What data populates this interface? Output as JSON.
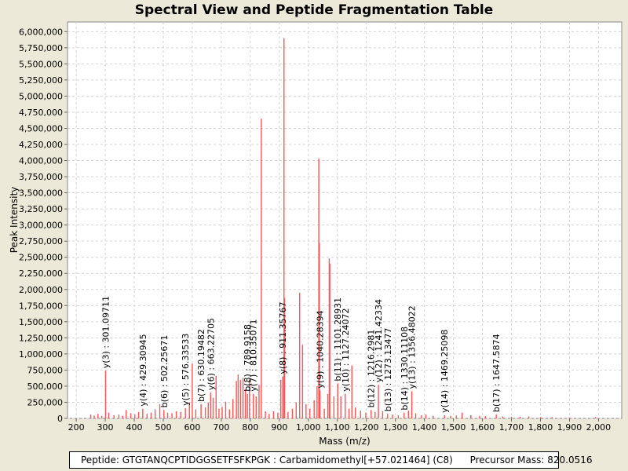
{
  "chart_data": {
    "type": "bar",
    "title": "Spectral View and Peptide Fragmentation Table",
    "xlabel": "Mass (m/z)",
    "ylabel": "Peak Intensity",
    "xlim": [
      170,
      2080
    ],
    "ylim": [
      0,
      6150000
    ],
    "x_ticks": [
      200,
      300,
      400,
      500,
      600,
      700,
      800,
      900,
      1000,
      1100,
      1200,
      1300,
      1400,
      1500,
      1600,
      1700,
      1800,
      1900,
      2000
    ],
    "x_tick_labels": [
      "200",
      "300",
      "400",
      "500",
      "600",
      "700",
      "800",
      "900",
      "1,000",
      "1,100",
      "1,200",
      "1,300",
      "1,400",
      "1,500",
      "1,600",
      "1,700",
      "1,800",
      "1,900",
      "2,000"
    ],
    "y_ticks": [
      0,
      250000,
      500000,
      750000,
      1000000,
      1250000,
      1500000,
      1750000,
      2000000,
      2250000,
      2500000,
      2750000,
      3000000,
      3250000,
      3500000,
      3750000,
      4000000,
      4250000,
      4500000,
      4750000,
      5000000,
      5250000,
      5500000,
      5750000,
      6000000
    ],
    "y_tick_labels": [
      "0",
      "250,000",
      "500,000",
      "750,000",
      "1,000,000",
      "1,250,000",
      "1,500,000",
      "1,750,000",
      "2,000,000",
      "2,250,000",
      "2,500,000",
      "2,750,000",
      "3,000,000",
      "3,250,000",
      "3,500,000",
      "3,750,000",
      "4,000,000",
      "4,250,000",
      "4,500,000",
      "4,750,000",
      "5,000,000",
      "5,250,000",
      "5,500,000",
      "5,750,000",
      "6,000,000"
    ],
    "grid": true,
    "peaks": [
      {
        "mz": 250,
        "i": 60000
      },
      {
        "mz": 262,
        "i": 45000
      },
      {
        "mz": 275,
        "i": 70000
      },
      {
        "mz": 288,
        "i": 40000
      },
      {
        "mz": 301.1,
        "i": 740000
      },
      {
        "mz": 312,
        "i": 90000
      },
      {
        "mz": 330,
        "i": 50000
      },
      {
        "mz": 347,
        "i": 60000
      },
      {
        "mz": 360,
        "i": 40000
      },
      {
        "mz": 372,
        "i": 130000
      },
      {
        "mz": 388,
        "i": 80000
      },
      {
        "mz": 402,
        "i": 60000
      },
      {
        "mz": 415,
        "i": 100000
      },
      {
        "mz": 429.3,
        "i": 150000
      },
      {
        "mz": 444,
        "i": 70000
      },
      {
        "mz": 458,
        "i": 90000
      },
      {
        "mz": 472,
        "i": 140000
      },
      {
        "mz": 488,
        "i": 220000
      },
      {
        "mz": 502.3,
        "i": 130000
      },
      {
        "mz": 515,
        "i": 90000
      },
      {
        "mz": 530,
        "i": 80000
      },
      {
        "mz": 545,
        "i": 110000
      },
      {
        "mz": 560,
        "i": 100000
      },
      {
        "mz": 576.3,
        "i": 160000
      },
      {
        "mz": 590,
        "i": 250000
      },
      {
        "mz": 600,
        "i": 850000
      },
      {
        "mz": 612,
        "i": 140000
      },
      {
        "mz": 630.2,
        "i": 220000
      },
      {
        "mz": 645,
        "i": 170000
      },
      {
        "mz": 655,
        "i": 250000
      },
      {
        "mz": 663.2,
        "i": 400000
      },
      {
        "mz": 672,
        "i": 320000
      },
      {
        "mz": 682,
        "i": 660000
      },
      {
        "mz": 692,
        "i": 150000
      },
      {
        "mz": 703,
        "i": 180000
      },
      {
        "mz": 715,
        "i": 260000
      },
      {
        "mz": 728,
        "i": 140000
      },
      {
        "mz": 740,
        "i": 300000
      },
      {
        "mz": 752,
        "i": 580000
      },
      {
        "mz": 758,
        "i": 680000
      },
      {
        "mz": 766,
        "i": 600000
      },
      {
        "mz": 775,
        "i": 630000
      },
      {
        "mz": 783,
        "i": 450000
      },
      {
        "mz": 789.9,
        "i": 380000
      },
      {
        "mz": 797,
        "i": 600000
      },
      {
        "mz": 810.4,
        "i": 380000
      },
      {
        "mz": 820,
        "i": 340000
      },
      {
        "mz": 830,
        "i": 520000
      },
      {
        "mz": 838,
        "i": 4650000
      },
      {
        "mz": 852,
        "i": 110000
      },
      {
        "mz": 865,
        "i": 70000
      },
      {
        "mz": 880,
        "i": 110000
      },
      {
        "mz": 895,
        "i": 90000
      },
      {
        "mz": 905,
        "i": 600000
      },
      {
        "mz": 911.4,
        "i": 650000
      },
      {
        "mz": 916,
        "i": 5900000
      },
      {
        "mz": 918,
        "i": 1870000
      },
      {
        "mz": 930,
        "i": 100000
      },
      {
        "mz": 945,
        "i": 150000
      },
      {
        "mz": 958,
        "i": 250000
      },
      {
        "mz": 970,
        "i": 1950000
      },
      {
        "mz": 980,
        "i": 1140000
      },
      {
        "mz": 992,
        "i": 220000
      },
      {
        "mz": 1005,
        "i": 150000
      },
      {
        "mz": 1020,
        "i": 280000
      },
      {
        "mz": 1030,
        "i": 500000
      },
      {
        "mz": 1036,
        "i": 4030000
      },
      {
        "mz": 1038,
        "i": 2720000
      },
      {
        "mz": 1040.3,
        "i": 430000
      },
      {
        "mz": 1055,
        "i": 150000
      },
      {
        "mz": 1067,
        "i": 380000
      },
      {
        "mz": 1072,
        "i": 2480000
      },
      {
        "mz": 1074,
        "i": 2400000
      },
      {
        "mz": 1088,
        "i": 340000
      },
      {
        "mz": 1101.3,
        "i": 540000
      },
      {
        "mz": 1112,
        "i": 340000
      },
      {
        "mz": 1127.2,
        "i": 380000
      },
      {
        "mz": 1140,
        "i": 150000
      },
      {
        "mz": 1150,
        "i": 820000
      },
      {
        "mz": 1162,
        "i": 170000
      },
      {
        "mz": 1180,
        "i": 120000
      },
      {
        "mz": 1198,
        "i": 90000
      },
      {
        "mz": 1216.3,
        "i": 130000
      },
      {
        "mz": 1230,
        "i": 100000
      },
      {
        "mz": 1241.4,
        "i": 520000
      },
      {
        "mz": 1256,
        "i": 110000
      },
      {
        "mz": 1273.1,
        "i": 70000
      },
      {
        "mz": 1290,
        "i": 60000
      },
      {
        "mz": 1310,
        "i": 50000
      },
      {
        "mz": 1330.1,
        "i": 90000
      },
      {
        "mz": 1345,
        "i": 120000
      },
      {
        "mz": 1356.5,
        "i": 420000
      },
      {
        "mz": 1370,
        "i": 80000
      },
      {
        "mz": 1390,
        "i": 50000
      },
      {
        "mz": 1405,
        "i": 60000
      },
      {
        "mz": 1430,
        "i": 40000
      },
      {
        "mz": 1469.3,
        "i": 50000
      },
      {
        "mz": 1490,
        "i": 40000
      },
      {
        "mz": 1510,
        "i": 45000
      },
      {
        "mz": 1530,
        "i": 90000
      },
      {
        "mz": 1560,
        "i": 50000
      },
      {
        "mz": 1590,
        "i": 40000
      },
      {
        "mz": 1610,
        "i": 35000
      },
      {
        "mz": 1647.6,
        "i": 60000
      },
      {
        "mz": 1670,
        "i": 30000
      },
      {
        "mz": 1700,
        "i": 25000
      },
      {
        "mz": 1730,
        "i": 25000
      },
      {
        "mz": 1760,
        "i": 30000
      },
      {
        "mz": 1800,
        "i": 20000
      },
      {
        "mz": 1840,
        "i": 20000
      },
      {
        "mz": 1900,
        "i": 15000
      },
      {
        "mz": 1990,
        "i": 20000
      }
    ],
    "annotations": [
      {
        "mz": 301.09711,
        "i": 740000,
        "label": "y(3) : 301.09711"
      },
      {
        "mz": 429.30945,
        "i": 150000,
        "label": "y(4) : 429.30945"
      },
      {
        "mz": 502.25671,
        "i": 130000,
        "label": "b(6) : 502.25671"
      },
      {
        "mz": 576.33533,
        "i": 160000,
        "label": "y(5) : 576.33533"
      },
      {
        "mz": 630.19482,
        "i": 220000,
        "label": "b(7) : 630.19482"
      },
      {
        "mz": 663.22705,
        "i": 400000,
        "label": "y(6) : 663.22705"
      },
      {
        "mz": 789.9158,
        "i": 380000,
        "label": "b(8) : 789.9158"
      },
      {
        "mz": 810.35071,
        "i": 380000,
        "label": "y(7) : 810.35071"
      },
      {
        "mz": 911.35767,
        "i": 650000,
        "label": "y(8) : 911.35767"
      },
      {
        "mz": 1040.28394,
        "i": 430000,
        "label": "y(9) : 1040.28394"
      },
      {
        "mz": 1101.28931,
        "i": 540000,
        "label": "b(11) : 1101.28931"
      },
      {
        "mz": 1127.24072,
        "i": 380000,
        "label": "y(10) : 1127.24072"
      },
      {
        "mz": 1216.2981,
        "i": 130000,
        "label": "b(12) : 1216.2981"
      },
      {
        "mz": 1241.42334,
        "i": 520000,
        "label": "y(12) : 1241.42334"
      },
      {
        "mz": 1273.13477,
        "i": 70000,
        "label": "b(13) : 1273.13477"
      },
      {
        "mz": 1330.11108,
        "i": 90000,
        "label": "b(14) : 1330.11108"
      },
      {
        "mz": 1356.48022,
        "i": 420000,
        "label": "y(13) : 1356.48022"
      },
      {
        "mz": 1469.25098,
        "i": 50000,
        "label": "y(14) : 1469.25098"
      },
      {
        "mz": 1647.5874,
        "i": 60000,
        "label": "b(17) : 1647.5874"
      }
    ],
    "peak_color": "#ff5555",
    "annotation_line_color": "#d8d8d8",
    "grid_color": "#d4d4d4",
    "plot_background": "#ffffff"
  },
  "footer": {
    "peptide": "Peptide: GTGTANQCPTIDGGSETFSFKPGK : Carbamidomethyl[+57.021464] (C8)",
    "precursor": "Precursor Mass: 820.0516"
  }
}
